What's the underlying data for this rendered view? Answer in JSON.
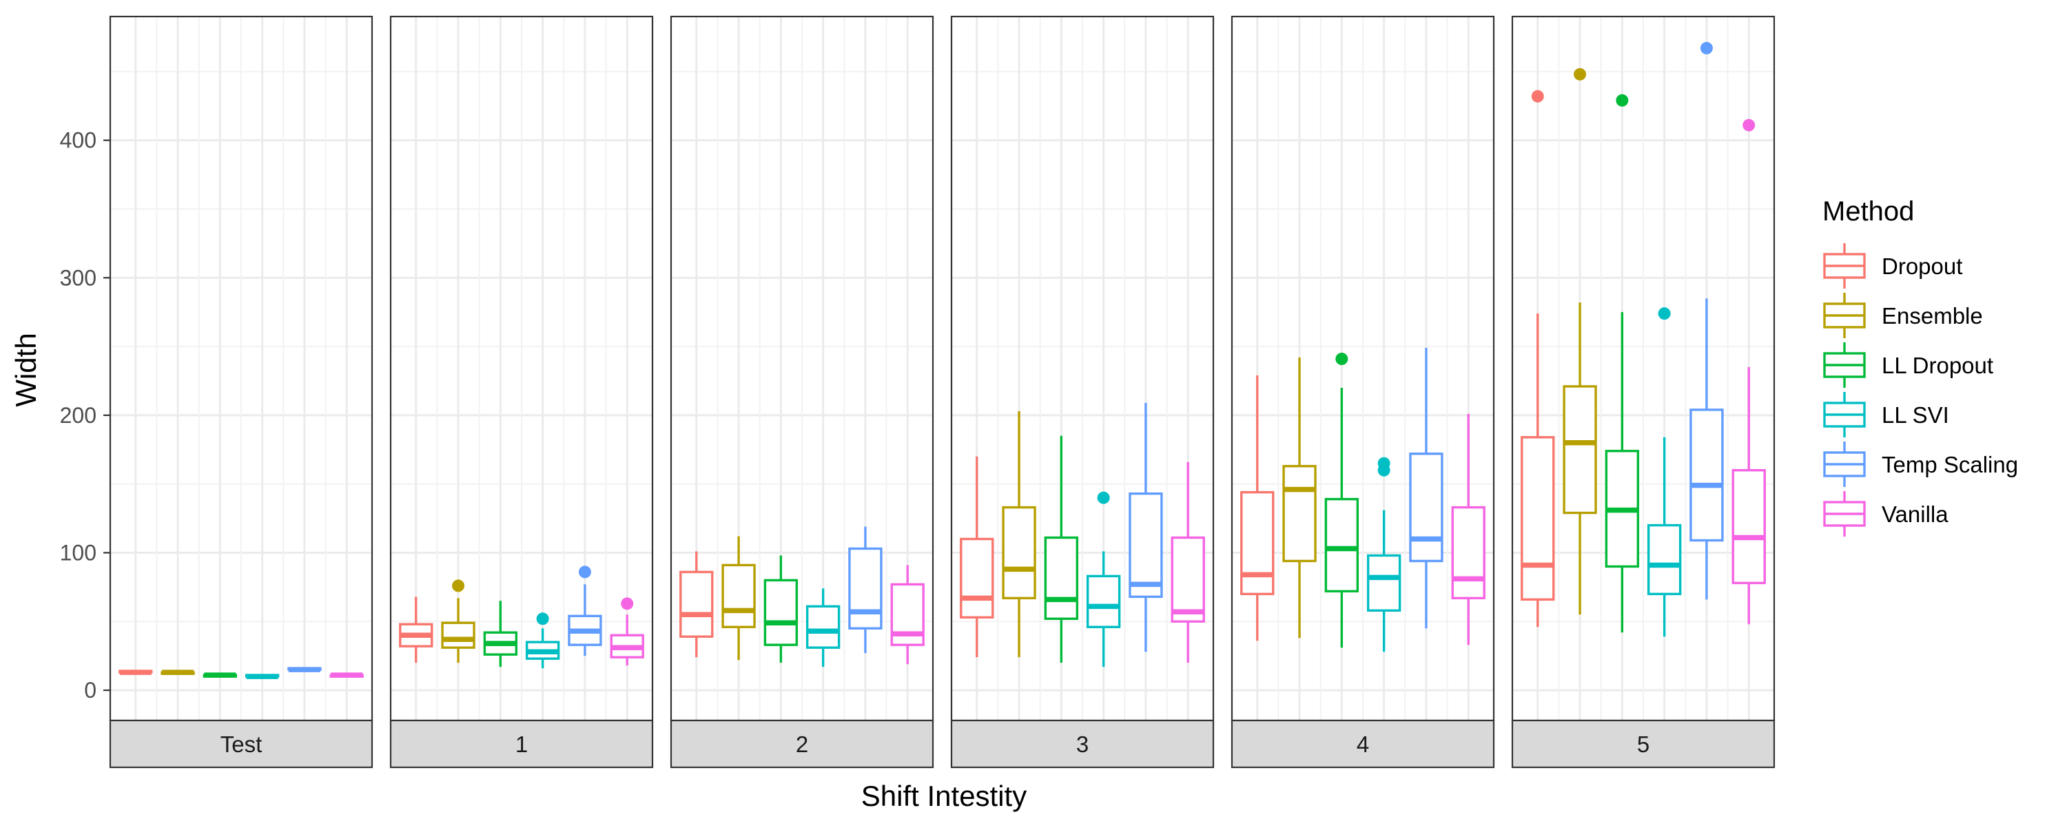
{
  "chart_data": {
    "type": "boxplot",
    "xlabel": "Shift Intestity",
    "ylabel": "Width",
    "ylim": [
      -22,
      490
    ],
    "yticks": [
      0,
      100,
      200,
      300,
      400
    ],
    "grid": true,
    "legend": {
      "title": "Method",
      "position": "right"
    },
    "panels": [
      "Test",
      "1",
      "2",
      "3",
      "4",
      "5"
    ],
    "series": [
      {
        "name": "Dropout",
        "color": "#F8766D"
      },
      {
        "name": "Ensemble",
        "color": "#B79F00"
      },
      {
        "name": "LL Dropout",
        "color": "#00BA38"
      },
      {
        "name": "LL SVI",
        "color": "#00BFC4"
      },
      {
        "name": "Temp Scaling",
        "color": "#619CFF"
      },
      {
        "name": "Vanilla",
        "color": "#F564E3"
      }
    ],
    "boxes": {
      "Test": [
        {
          "min": 12,
          "q1": 13,
          "median": 13,
          "q3": 14,
          "max": 14,
          "outliers": []
        },
        {
          "min": 12,
          "q1": 12,
          "median": 13,
          "q3": 13,
          "max": 14,
          "outliers": []
        },
        {
          "min": 10,
          "q1": 10,
          "median": 11,
          "q3": 11,
          "max": 11,
          "outliers": []
        },
        {
          "min": 10,
          "q1": 10,
          "median": 10,
          "q3": 11,
          "max": 11,
          "outliers": []
        },
        {
          "min": 14,
          "q1": 15,
          "median": 15,
          "q3": 16,
          "max": 16,
          "outliers": []
        },
        {
          "min": 10,
          "q1": 10,
          "median": 11,
          "q3": 11,
          "max": 11,
          "outliers": []
        }
      ],
      "1": [
        {
          "min": 20,
          "q1": 32,
          "median": 40,
          "q3": 48,
          "max": 68,
          "outliers": []
        },
        {
          "min": 20,
          "q1": 31,
          "median": 37,
          "q3": 49,
          "max": 67,
          "outliers": [
            76
          ]
        },
        {
          "min": 17,
          "q1": 26,
          "median": 34,
          "q3": 42,
          "max": 65,
          "outliers": []
        },
        {
          "min": 16,
          "q1": 23,
          "median": 28,
          "q3": 35,
          "max": 45,
          "outliers": [
            52
          ]
        },
        {
          "min": 25,
          "q1": 33,
          "median": 43,
          "q3": 54,
          "max": 77,
          "outliers": [
            86
          ]
        },
        {
          "min": 18,
          "q1": 24,
          "median": 31,
          "q3": 40,
          "max": 55,
          "outliers": [
            63
          ]
        }
      ],
      "2": [
        {
          "min": 24,
          "q1": 39,
          "median": 55,
          "q3": 86,
          "max": 101,
          "outliers": []
        },
        {
          "min": 22,
          "q1": 46,
          "median": 58,
          "q3": 91,
          "max": 112,
          "outliers": []
        },
        {
          "min": 20,
          "q1": 33,
          "median": 49,
          "q3": 80,
          "max": 98,
          "outliers": []
        },
        {
          "min": 17,
          "q1": 31,
          "median": 43,
          "q3": 61,
          "max": 74,
          "outliers": []
        },
        {
          "min": 27,
          "q1": 45,
          "median": 57,
          "q3": 103,
          "max": 119,
          "outliers": []
        },
        {
          "min": 19,
          "q1": 33,
          "median": 41,
          "q3": 77,
          "max": 91,
          "outliers": []
        }
      ],
      "3": [
        {
          "min": 24,
          "q1": 53,
          "median": 67,
          "q3": 110,
          "max": 170,
          "outliers": []
        },
        {
          "min": 24,
          "q1": 67,
          "median": 88,
          "q3": 133,
          "max": 203,
          "outliers": []
        },
        {
          "min": 20,
          "q1": 52,
          "median": 66,
          "q3": 111,
          "max": 185,
          "outliers": []
        },
        {
          "min": 17,
          "q1": 46,
          "median": 61,
          "q3": 83,
          "max": 101,
          "outliers": [
            140
          ]
        },
        {
          "min": 28,
          "q1": 68,
          "median": 77,
          "q3": 143,
          "max": 209,
          "outliers": []
        },
        {
          "min": 20,
          "q1": 50,
          "median": 57,
          "q3": 111,
          "max": 166,
          "outliers": []
        }
      ],
      "4": [
        {
          "min": 36,
          "q1": 70,
          "median": 84,
          "q3": 144,
          "max": 229,
          "outliers": []
        },
        {
          "min": 38,
          "q1": 94,
          "median": 146,
          "q3": 163,
          "max": 242,
          "outliers": []
        },
        {
          "min": 31,
          "q1": 72,
          "median": 103,
          "q3": 139,
          "max": 220,
          "outliers": [
            241
          ]
        },
        {
          "min": 28,
          "q1": 58,
          "median": 82,
          "q3": 98,
          "max": 131,
          "outliers": [
            160,
            165
          ]
        },
        {
          "min": 45,
          "q1": 94,
          "median": 110,
          "q3": 172,
          "max": 249,
          "outliers": []
        },
        {
          "min": 33,
          "q1": 67,
          "median": 81,
          "q3": 133,
          "max": 201,
          "outliers": []
        }
      ],
      "5": [
        {
          "min": 46,
          "q1": 66,
          "median": 91,
          "q3": 184,
          "max": 274,
          "outliers": [
            432
          ]
        },
        {
          "min": 55,
          "q1": 129,
          "median": 180,
          "q3": 221,
          "max": 282,
          "outliers": [
            448
          ]
        },
        {
          "min": 42,
          "q1": 90,
          "median": 131,
          "q3": 174,
          "max": 275,
          "outliers": [
            429
          ]
        },
        {
          "min": 39,
          "q1": 70,
          "median": 91,
          "q3": 120,
          "max": 184,
          "outliers": [
            274
          ]
        },
        {
          "min": 66,
          "q1": 109,
          "median": 149,
          "q3": 204,
          "max": 285,
          "outliers": [
            467
          ]
        },
        {
          "min": 48,
          "q1": 78,
          "median": 111,
          "q3": 160,
          "max": 235,
          "outliers": [
            411
          ]
        }
      ]
    }
  }
}
